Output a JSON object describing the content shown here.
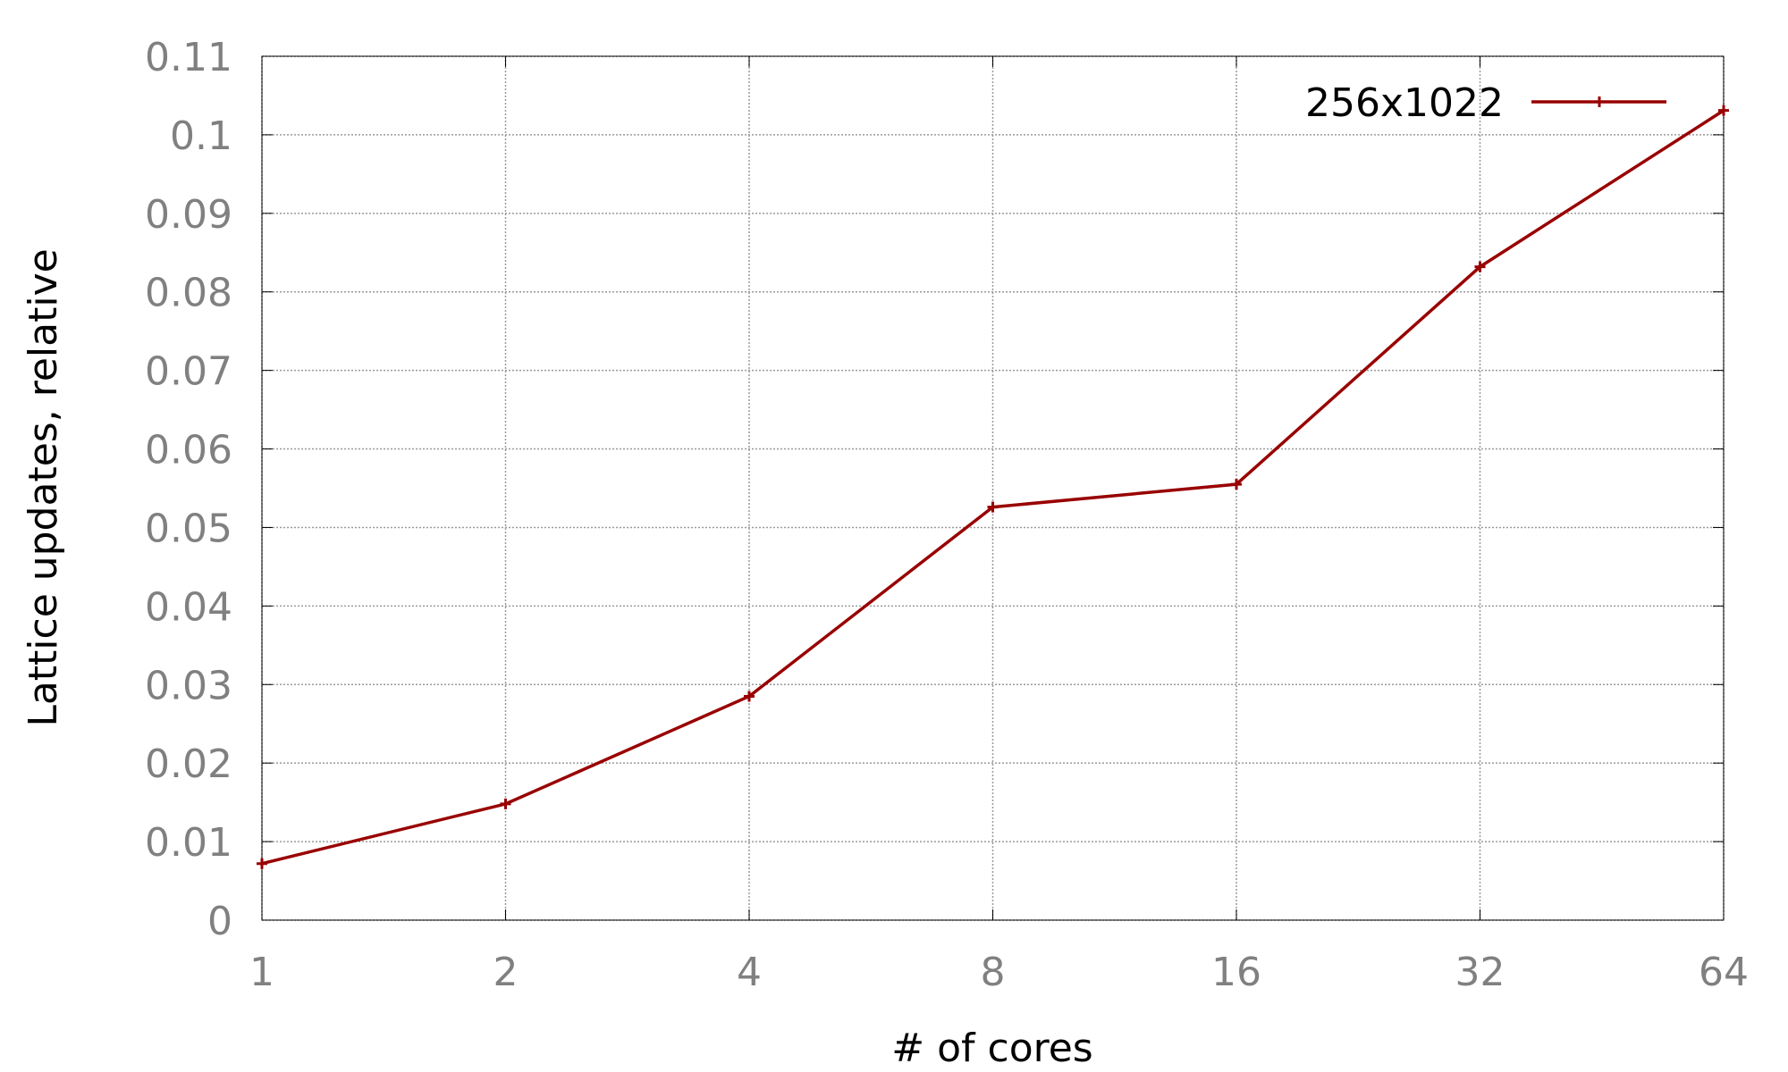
{
  "chart_data": {
    "type": "line",
    "title": "",
    "xlabel": "# of cores",
    "ylabel": "Lattice updates, relative",
    "x_scale": "log2",
    "x": [
      1,
      2,
      4,
      8,
      16,
      32,
      64
    ],
    "x_tick_labels": [
      "1",
      "2",
      "4",
      "8",
      "16",
      "32",
      "64"
    ],
    "y_ticks": [
      0,
      0.01,
      0.02,
      0.03,
      0.04,
      0.05,
      0.06,
      0.07,
      0.08,
      0.09,
      0.1,
      0.11
    ],
    "y_tick_labels": [
      "0",
      "0.01",
      "0.02",
      "0.03",
      "0.04",
      "0.05",
      "0.06",
      "0.07",
      "0.08",
      "0.09",
      "0.1",
      "0.11"
    ],
    "xlim": [
      1,
      64
    ],
    "ylim": [
      0,
      0.11
    ],
    "grid": true,
    "legend_position": "top-right",
    "series": [
      {
        "name": "256x1022",
        "color": "#990000",
        "marker": "plus",
        "values": [
          0.0072,
          0.0148,
          0.0285,
          0.0526,
          0.0555,
          0.0832,
          0.1031
        ]
      }
    ]
  }
}
